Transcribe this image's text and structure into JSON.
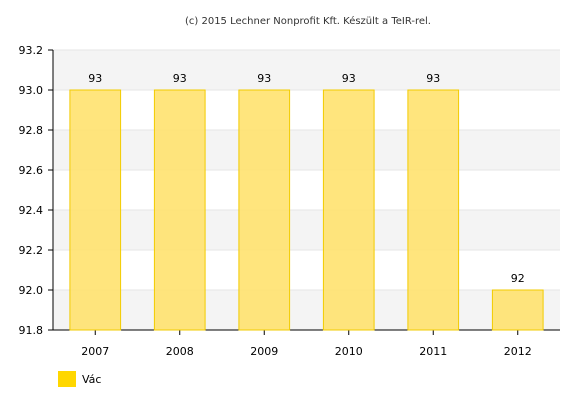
{
  "chart_data": {
    "type": "bar",
    "title": "",
    "credit": "(c) 2015 Lechner Nonprofit Kft. Készült a TeIR-rel.",
    "xlabel": "",
    "ylabel": "",
    "categories": [
      "2007",
      "2008",
      "2009",
      "2010",
      "2011",
      "2012"
    ],
    "series": [
      {
        "name": "Vác",
        "values": [
          93,
          93,
          93,
          93,
          93,
          92
        ],
        "data_labels": [
          "93",
          "93",
          "93",
          "93",
          "93",
          "92"
        ],
        "color": "#FFE066",
        "border_color": "#F2CB00"
      }
    ],
    "ylim": [
      91.8,
      93.2
    ],
    "yticks": [
      91.8,
      92.0,
      92.2,
      92.4,
      92.6,
      92.8,
      93.0,
      93.2
    ],
    "ytick_labels": [
      "91.8",
      "92.0",
      "92.2",
      "92.4",
      "92.6",
      "92.8",
      "93.0",
      "93.2"
    ],
    "grid": true,
    "band_color": "#F4F4F4",
    "legend_position": "bottom-left",
    "legend_swatch_color": "#FFD700"
  }
}
